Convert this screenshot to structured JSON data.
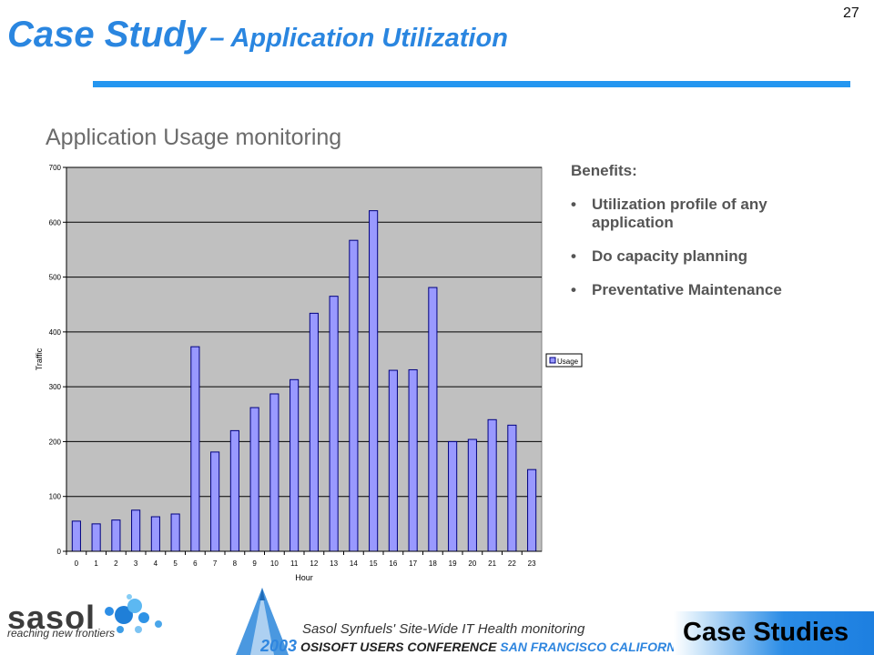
{
  "slide": {
    "title_main": "Case Study",
    "title_rest": "– Application Utilization",
    "page_number": "27",
    "subtitle": "Application Usage monitoring"
  },
  "benefits": {
    "heading": "Benefits:",
    "bullet": "•",
    "items": [
      "Utilization profile of any application",
      "Do capacity planning",
      "Preventative Maintenance"
    ]
  },
  "footer": {
    "logo_word": "sasol",
    "logo_tagline": "reaching new frontiers",
    "caption": "Sasol Synfuels' Site-Wide IT Health monitoring",
    "conf_year": "2003",
    "conf_name": "OSISOFT USERS CONFERENCE",
    "conf_place": "SAN FRANCISCO CALIFORNIA U",
    "section_badge": "Case Studies"
  },
  "colors": {
    "title": "#2A86E0",
    "rule": "#2496F0",
    "plot_bg": "#C0C0C0",
    "bar_fill": "#9999FF",
    "bar_stroke": "#000080"
  },
  "chart_data": {
    "type": "bar",
    "title": "",
    "xlabel": "Hour",
    "ylabel": "Traffic",
    "categories": [
      "0",
      "1",
      "2",
      "3",
      "4",
      "5",
      "6",
      "7",
      "8",
      "9",
      "10",
      "11",
      "12",
      "13",
      "14",
      "15",
      "16",
      "17",
      "18",
      "19",
      "20",
      "21",
      "22",
      "23"
    ],
    "series": [
      {
        "name": "Usage",
        "values": [
          55,
          50,
          57,
          75,
          63,
          68,
          373,
          181,
          220,
          262,
          287,
          313,
          434,
          465,
          567,
          621,
          330,
          331,
          481,
          200,
          204,
          240,
          230,
          149
        ]
      }
    ],
    "ylim": [
      0,
      700
    ],
    "yticks": [
      0,
      100,
      200,
      300,
      400,
      500,
      600,
      700
    ],
    "grid": true,
    "legend": "right"
  }
}
